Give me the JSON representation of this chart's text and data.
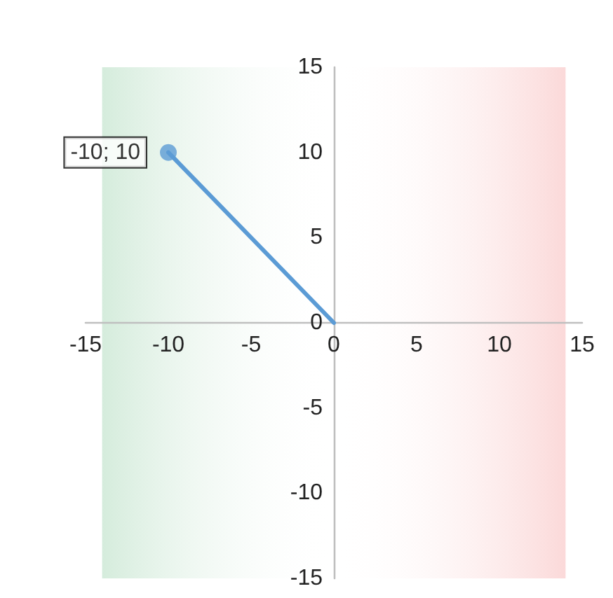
{
  "chart_data": {
    "type": "line",
    "x": [
      0,
      -10
    ],
    "series": [
      {
        "type": "line",
        "color": "#5b9bd5",
        "values": [
          0,
          10
        ],
        "marker": "none"
      },
      {
        "type": "scatter",
        "color": "#5b9bd5",
        "x": [
          -10
        ],
        "values": [
          10
        ],
        "value_labels": [
          "-10; 10"
        ],
        "marker": "circle"
      }
    ],
    "xlim": [
      -15,
      15
    ],
    "xticks": [
      -15,
      -10,
      -5,
      0,
      5,
      10,
      15
    ],
    "ylim": [
      -15,
      15
    ],
    "yticks": [
      -15,
      -10,
      -5,
      0,
      5,
      10,
      15
    ],
    "grid": false,
    "bands": [
      {
        "axis": "x",
        "from": -14,
        "to": 0,
        "color": "#d5ecdc"
      },
      {
        "axis": "x",
        "from": 0,
        "to": 14,
        "color": "#fbd9d9"
      }
    ]
  }
}
